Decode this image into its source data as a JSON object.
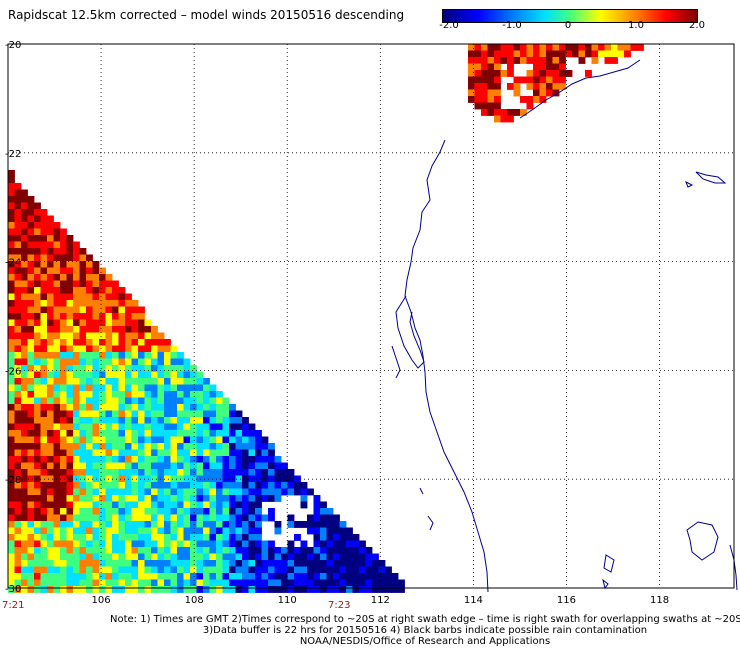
{
  "title": "Rapidscat 12.5km corrected – model winds 20150516 descending",
  "colorbar": {
    "ticks": [
      "-2.0",
      "-1.0",
      "0",
      "1.0",
      "2.0"
    ],
    "colors": [
      "#000080",
      "#0000ff",
      "#0080ff",
      "#00e0ff",
      "#40ff80",
      "#ffff00",
      "#ff8000",
      "#ff0000",
      "#800000"
    ]
  },
  "map": {
    "lon_range": [
      104,
      119.6
    ],
    "lat_range": [
      -30,
      -20
    ],
    "lon_ticks": [
      "106",
      "108",
      "110",
      "112",
      "114",
      "116",
      "118"
    ],
    "lat_ticks": [
      "-20",
      "-22",
      "-24",
      "-26",
      "-28",
      "-30"
    ],
    "coast_color": "#00008b",
    "grid": "dotted"
  },
  "swath_times": [
    "7:21",
    "7:23"
  ],
  "notes": [
    "Note: 1) Times are GMT 2)Times correspond to ~20S at right swath edge – time is right swath for overlapping swaths at ~20S",
    "3)Data buffer is 22 hrs for 20150516 4) Black barbs indicate possible rain contamination",
    "NOAA/NESDIS/Office of Research and Applications"
  ]
}
